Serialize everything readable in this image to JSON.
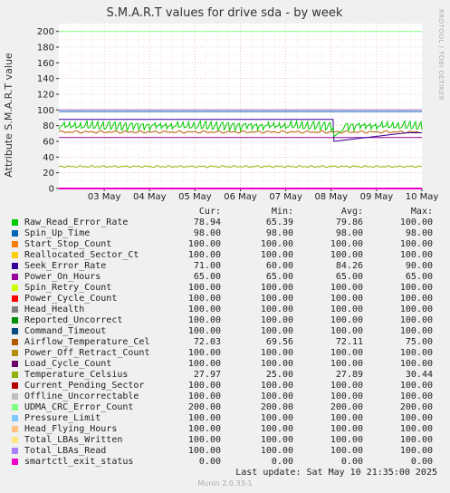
{
  "chart_data": {
    "type": "line",
    "title": "S.M.A.R.T values for drive sda - by week",
    "ylabel": "Attribute S.M.A.R.T value",
    "ylim": [
      0,
      210
    ],
    "yticks": [
      0,
      20,
      40,
      60,
      80,
      100,
      120,
      140,
      160,
      180,
      200
    ],
    "xlim": [
      0,
      8.0
    ],
    "xticks": [
      {
        "x": 1.0,
        "label": "03 May"
      },
      {
        "x": 2.0,
        "label": "04 May"
      },
      {
        "x": 3.0,
        "label": "05 May"
      },
      {
        "x": 4.0,
        "label": "06 May"
      },
      {
        "x": 5.0,
        "label": "07 May"
      },
      {
        "x": 6.0,
        "label": "08 May"
      },
      {
        "x": 7.0,
        "label": "09 May"
      },
      {
        "x": 8.0,
        "label": "10 May"
      }
    ],
    "grid": true,
    "legend_placement": "bottom",
    "side_credit": "RRDTOOL / TOBI OETIKER",
    "columns": [
      "Cur:",
      "Min:",
      "Avg:",
      "Max:"
    ],
    "series": [
      {
        "name": "Raw_Read_Error_Rate",
        "color": "#00cc00",
        "cur": "78.94",
        "min": "65.39",
        "avg": "79.86",
        "max": "100.00"
      },
      {
        "name": "Spin_Up_Time",
        "color": "#0066b3",
        "cur": "98.00",
        "min": "98.00",
        "avg": "98.00",
        "max": "98.00"
      },
      {
        "name": "Start_Stop_Count",
        "color": "#ff8000",
        "cur": "100.00",
        "min": "100.00",
        "avg": "100.00",
        "max": "100.00"
      },
      {
        "name": "Reallocated_Sector_Ct",
        "color": "#ffcc00",
        "cur": "100.00",
        "min": "100.00",
        "avg": "100.00",
        "max": "100.00"
      },
      {
        "name": "Seek_Error_Rate",
        "color": "#330099",
        "cur": "71.00",
        "min": "60.00",
        "avg": "84.26",
        "max": "90.00"
      },
      {
        "name": "Power_On_Hours",
        "color": "#990099",
        "cur": "65.00",
        "min": "65.00",
        "avg": "65.00",
        "max": "65.00"
      },
      {
        "name": "Spin_Retry_Count",
        "color": "#ccff00",
        "cur": "100.00",
        "min": "100.00",
        "avg": "100.00",
        "max": "100.00"
      },
      {
        "name": "Power_Cycle_Count",
        "color": "#ff0000",
        "cur": "100.00",
        "min": "100.00",
        "avg": "100.00",
        "max": "100.00"
      },
      {
        "name": "Head_Health",
        "color": "#808080",
        "cur": "100.00",
        "min": "100.00",
        "avg": "100.00",
        "max": "100.00"
      },
      {
        "name": "Reported_Uncorrect",
        "color": "#008f00",
        "cur": "100.00",
        "min": "100.00",
        "avg": "100.00",
        "max": "100.00"
      },
      {
        "name": "Command_Timeout",
        "color": "#00487d",
        "cur": "100.00",
        "min": "100.00",
        "avg": "100.00",
        "max": "100.00"
      },
      {
        "name": "Airflow_Temperature_Cel",
        "color": "#b35a00",
        "cur": "72.03",
        "min": "69.56",
        "avg": "72.11",
        "max": "75.00"
      },
      {
        "name": "Power_Off_Retract_Count",
        "color": "#b38f00",
        "cur": "100.00",
        "min": "100.00",
        "avg": "100.00",
        "max": "100.00"
      },
      {
        "name": "Load_Cycle_Count",
        "color": "#6b006b",
        "cur": "100.00",
        "min": "100.00",
        "avg": "100.00",
        "max": "100.00"
      },
      {
        "name": "Temperature_Celsius",
        "color": "#8fb300",
        "cur": "27.97",
        "min": "25.00",
        "avg": "27.89",
        "max": "30.44"
      },
      {
        "name": "Current_Pending_Sector",
        "color": "#b30000",
        "cur": "100.00",
        "min": "100.00",
        "avg": "100.00",
        "max": "100.00"
      },
      {
        "name": "Offline_Uncorrectable",
        "color": "#bebebe",
        "cur": "100.00",
        "min": "100.00",
        "avg": "100.00",
        "max": "100.00"
      },
      {
        "name": "UDMA_CRC_Error_Count",
        "color": "#80ff80",
        "cur": "200.00",
        "min": "200.00",
        "avg": "200.00",
        "max": "200.00"
      },
      {
        "name": "Pressure_Limit",
        "color": "#80c9ff",
        "cur": "100.00",
        "min": "100.00",
        "avg": "100.00",
        "max": "100.00"
      },
      {
        "name": "Head_Flying_Hours",
        "color": "#ffc080",
        "cur": "100.00",
        "min": "100.00",
        "avg": "100.00",
        "max": "100.00"
      },
      {
        "name": "Total_LBAs_Written",
        "color": "#ffe680",
        "cur": "100.00",
        "min": "100.00",
        "avg": "100.00",
        "max": "100.00"
      },
      {
        "name": "Total_LBAs_Read",
        "color": "#aa80ff",
        "cur": "100.00",
        "min": "100.00",
        "avg": "100.00",
        "max": "100.00"
      },
      {
        "name": "smartctl_exit_status",
        "color": "#ee00cc",
        "cur": "0.00",
        "min": "0.00",
        "avg": "0.00",
        "max": "0.00"
      }
    ],
    "last_update": "Last update:  Sat May 10 21:35:00 2025",
    "footer": "Munin 2.0.33-1"
  }
}
